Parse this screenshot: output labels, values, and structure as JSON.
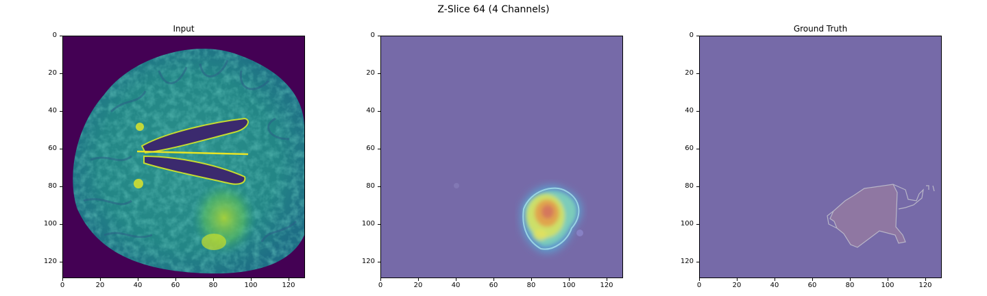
{
  "figure": {
    "title": "Z-Slice 64 (4 Channels)"
  },
  "panels": [
    {
      "key": "input",
      "title": "Input"
    },
    {
      "key": "prediction",
      "title": ""
    },
    {
      "key": "ground_truth",
      "title": "Ground Truth"
    }
  ],
  "axes": {
    "x_ticks": [
      "0",
      "20",
      "40",
      "60",
      "80",
      "100",
      "120"
    ],
    "y_ticks": [
      "0",
      "20",
      "40",
      "60",
      "80",
      "100",
      "120"
    ],
    "xlim": [
      0,
      128
    ],
    "ylim": [
      128,
      0
    ]
  },
  "colors": {
    "background_purple": "#440154",
    "overlay_purple": "#766aa8",
    "brain_teal": "#2a8c8a",
    "bright_yellow": "#e6e31e",
    "hot_orange": "#e08a4c",
    "outline_gray": "#b9b6c8"
  }
}
